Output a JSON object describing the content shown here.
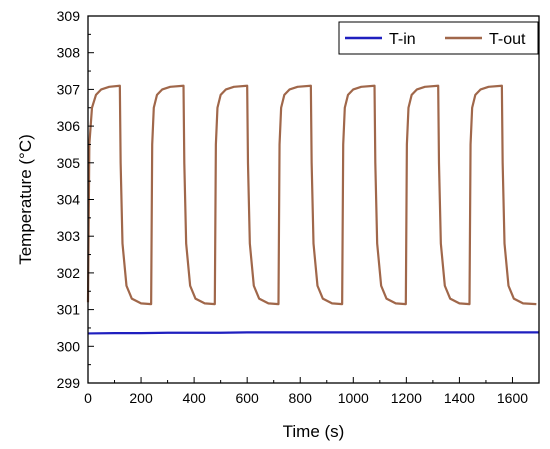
{
  "chart_data": {
    "type": "line",
    "title": "",
    "xlabel": "Time (s)",
    "ylabel": "Temperature (°C)",
    "xlim": [
      0,
      1700
    ],
    "ylim": [
      299,
      309
    ],
    "xticks": [
      0,
      200,
      400,
      600,
      800,
      1000,
      1200,
      1400,
      1600
    ],
    "yticks": [
      299,
      300,
      301,
      302,
      303,
      304,
      305,
      306,
      307,
      308,
      309
    ],
    "grid": false,
    "legend_position": "top-right",
    "series": [
      {
        "name": "T-in",
        "color": "#1f1fbf",
        "x": [
          0,
          100,
          200,
          300,
          400,
          500,
          600,
          700,
          800,
          900,
          1000,
          1100,
          1200,
          1300,
          1400,
          1500,
          1600,
          1700
        ],
        "y": [
          300.35,
          300.36,
          300.36,
          300.37,
          300.37,
          300.37,
          300.38,
          300.38,
          300.38,
          300.38,
          300.38,
          300.38,
          300.38,
          300.38,
          300.38,
          300.38,
          300.38,
          300.38
        ]
      },
      {
        "name": "T-out",
        "color": "#a0674a",
        "x": [
          0,
          5,
          15,
          30,
          50,
          80,
          120,
          123,
          130,
          145,
          165,
          200,
          238,
          242,
          248,
          260,
          280,
          310,
          360,
          363,
          370,
          385,
          405,
          440,
          478,
          482,
          488,
          500,
          520,
          550,
          600,
          603,
          610,
          625,
          645,
          680,
          718,
          722,
          728,
          740,
          760,
          790,
          840,
          843,
          850,
          865,
          885,
          920,
          958,
          962,
          968,
          980,
          1000,
          1030,
          1080,
          1083,
          1090,
          1105,
          1125,
          1160,
          1198,
          1202,
          1208,
          1220,
          1240,
          1270,
          1320,
          1323,
          1330,
          1345,
          1365,
          1400,
          1438,
          1442,
          1448,
          1460,
          1480,
          1510,
          1560,
          1563,
          1570,
          1585,
          1605,
          1640,
          1690
        ],
        "y": [
          301.2,
          305.5,
          306.5,
          306.85,
          307.0,
          307.07,
          307.1,
          305.0,
          302.8,
          301.65,
          301.3,
          301.17,
          301.15,
          305.5,
          306.5,
          306.85,
          307.0,
          307.07,
          307.1,
          305.0,
          302.8,
          301.65,
          301.3,
          301.17,
          301.15,
          305.5,
          306.5,
          306.85,
          307.0,
          307.07,
          307.1,
          305.0,
          302.8,
          301.65,
          301.3,
          301.17,
          301.15,
          305.5,
          306.5,
          306.85,
          307.0,
          307.07,
          307.1,
          305.0,
          302.8,
          301.65,
          301.3,
          301.17,
          301.15,
          305.5,
          306.5,
          306.85,
          307.0,
          307.07,
          307.1,
          305.0,
          302.8,
          301.65,
          301.3,
          301.17,
          301.15,
          305.5,
          306.5,
          306.85,
          307.0,
          307.07,
          307.1,
          305.0,
          302.8,
          301.65,
          301.3,
          301.17,
          301.15,
          305.5,
          306.5,
          306.85,
          307.0,
          307.07,
          307.1,
          305.0,
          302.8,
          301.65,
          301.3,
          301.17,
          301.15
        ]
      }
    ]
  }
}
